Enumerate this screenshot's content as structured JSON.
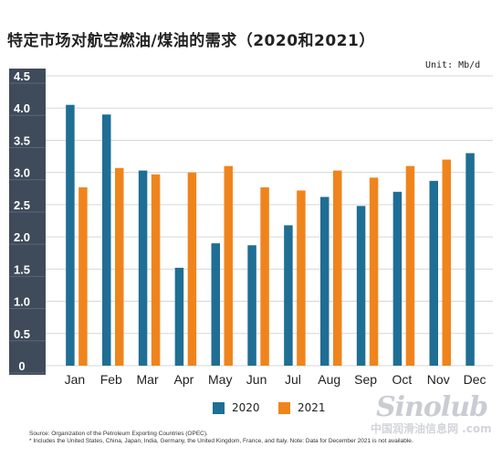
{
  "header": {
    "title": "特定市场对航空燃油/煤油的需求（2020和2021）",
    "unit": "Unit: Mb/d"
  },
  "colors": {
    "series_2020": "#1f6e94",
    "series_2021": "#f0841c",
    "axis_band": "#3f4b5a",
    "axis_text": "#ffffff",
    "gridline": "#d4d7dc"
  },
  "chart_data": {
    "type": "bar",
    "categories": [
      "Jan",
      "Feb",
      "Mar",
      "Apr",
      "May",
      "Jun",
      "Jul",
      "Aug",
      "Sep",
      "Oct",
      "Nov",
      "Dec"
    ],
    "series": [
      {
        "name": "2020",
        "values": [
          4.05,
          3.9,
          3.03,
          1.52,
          1.9,
          1.87,
          2.18,
          2.62,
          2.48,
          2.7,
          2.87,
          3.3
        ]
      },
      {
        "name": "2021",
        "values": [
          2.77,
          3.07,
          2.97,
          3.0,
          3.1,
          2.77,
          2.72,
          3.03,
          2.92,
          3.1,
          3.2,
          null
        ]
      }
    ],
    "yticks": [
      "0",
      "0.5",
      "1.0",
      "1.5",
      "2.0",
      "2.5",
      "3.0",
      "3.5",
      "4.0",
      "4.5"
    ],
    "ylim": [
      0,
      4.5
    ],
    "grid": true,
    "legend": "bottom-center"
  },
  "legend": {
    "label_2020": "2020",
    "label_2021": "2021"
  },
  "footer": {
    "source_line1": "Source: Organization of the Petroleum Exporting Countries (OPEC).",
    "source_line2": "* Includes the United States, China, Japan, India, Germany, the United Kingdom, France, and Italy. Note: Data for December 2021 is not available."
  },
  "watermark": {
    "logo": "Sinolub",
    "sub": "中国润滑油信息网",
    "domain": ".com"
  }
}
